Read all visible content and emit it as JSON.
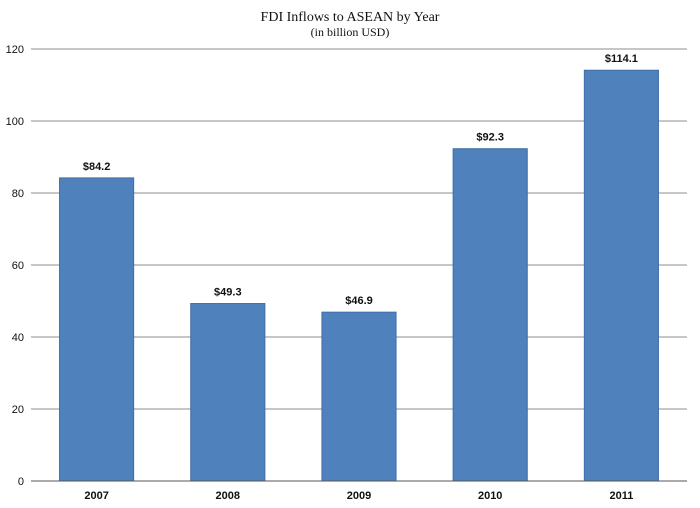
{
  "chart_data": {
    "type": "bar",
    "title": "FDI Inflows to ASEAN by Year",
    "subtitle": "(in billion USD)",
    "categories": [
      "2007",
      "2008",
      "2009",
      "2010",
      "2011"
    ],
    "values": [
      84.2,
      49.3,
      46.9,
      92.3,
      114.1
    ],
    "value_labels": [
      "$84.2",
      "$49.3",
      "$46.9",
      "$92.3",
      "$114.1"
    ],
    "ylim": [
      0,
      120
    ],
    "yticks": [
      0,
      20,
      40,
      60,
      80,
      100,
      120
    ],
    "ytick_labels": [
      "0",
      "20",
      "40",
      "60",
      "80",
      "100",
      "120"
    ],
    "xlabel": "",
    "ylabel": "",
    "grid": true,
    "legend": false,
    "bar_color": "#4f81bd",
    "bar_edge_color": "#3f6fa8"
  }
}
